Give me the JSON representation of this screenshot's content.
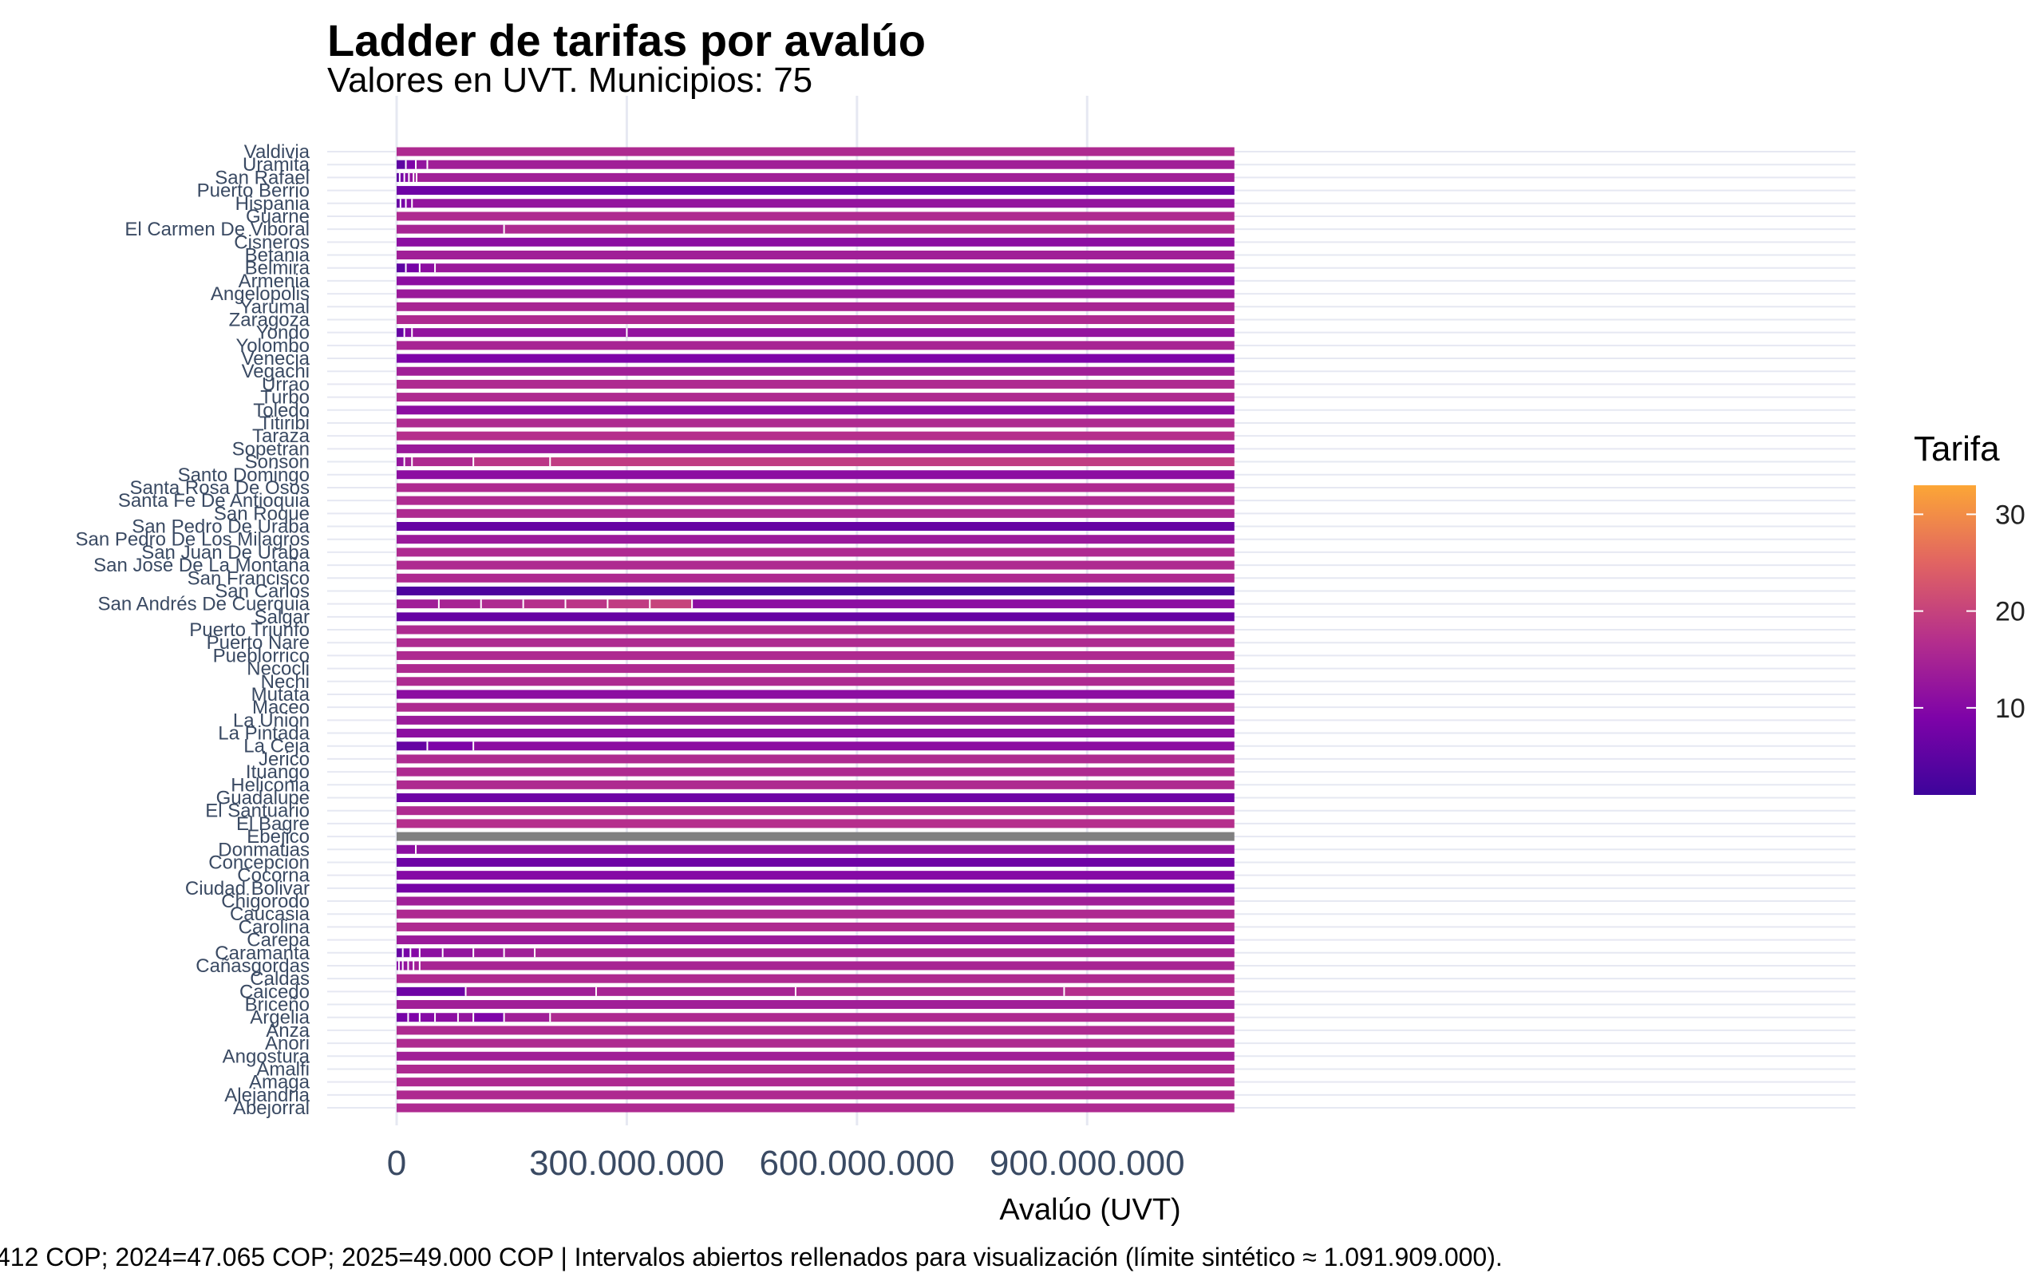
{
  "chart_data": {
    "type": "bar",
    "title": "Ladder de tarifas por avalúo",
    "subtitle": "Valores en UVT. Municipios: 75",
    "xlabel": "Avalúo (UVT)",
    "ylabel": "",
    "xlim": [
      0,
      1091909000
    ],
    "x_ticks": [
      {
        "value": 0,
        "label": "0"
      },
      {
        "value": 300000000,
        "label": "300.000.000"
      },
      {
        "value": 600000000,
        "label": "600.000.000"
      },
      {
        "value": 900000000,
        "label": "900.000.000"
      }
    ],
    "caption": "412 COP; 2024=47.065 COP; 2025=49.000 COP | Intervalos abiertos rellenados para visualización (límite sintético ≈ 1.091.909.000).",
    "legend": {
      "title": "Tarifa",
      "position": "right",
      "ticks": [
        10,
        20,
        30
      ],
      "range": [
        1,
        33
      ]
    },
    "municipios": [
      {
        "name": "Valdivia",
        "breaks": [],
        "tarifas": [
          16
        ]
      },
      {
        "name": "Uramita",
        "breaks": [
          12000000,
          25000000,
          40000000
        ],
        "tarifas": [
          5,
          9,
          12,
          14
        ]
      },
      {
        "name": "San Rafael",
        "breaks": [
          4000000,
          10000000,
          16000000,
          22000000,
          26000000
        ],
        "tarifas": [
          5,
          8,
          10,
          12,
          13,
          14
        ]
      },
      {
        "name": "Puerto Berrio",
        "breaks": [],
        "tarifas": [
          7
        ]
      },
      {
        "name": "Hispania",
        "breaks": [
          5000000,
          12000000,
          20000000
        ],
        "tarifas": [
          6,
          8,
          10,
          12
        ]
      },
      {
        "name": "Guarne",
        "breaks": [],
        "tarifas": [
          16
        ]
      },
      {
        "name": "El Carmen De Viboral",
        "breaks": [
          140000000
        ],
        "tarifas": [
          15,
          16
        ]
      },
      {
        "name": "Cisneros",
        "breaks": [],
        "tarifas": [
          11
        ]
      },
      {
        "name": "Betania",
        "breaks": [],
        "tarifas": [
          14
        ]
      },
      {
        "name": "Belmira",
        "breaks": [
          12000000,
          30000000,
          50000000
        ],
        "tarifas": [
          5,
          8,
          11,
          13
        ]
      },
      {
        "name": "Armenia",
        "breaks": [],
        "tarifas": [
          11
        ]
      },
      {
        "name": "Angelopolis",
        "breaks": [],
        "tarifas": [
          13
        ]
      },
      {
        "name": "Yarumal",
        "breaks": [],
        "tarifas": [
          15
        ]
      },
      {
        "name": "Zaragoza",
        "breaks": [],
        "tarifas": [
          16
        ]
      },
      {
        "name": "Yondo",
        "breaks": [
          10000000,
          20000000,
          300000000
        ],
        "tarifas": [
          6,
          10,
          12,
          12
        ]
      },
      {
        "name": "Yolombo",
        "breaks": [],
        "tarifas": [
          15
        ]
      },
      {
        "name": "Venecia",
        "breaks": [],
        "tarifas": [
          9
        ]
      },
      {
        "name": "Vegachi",
        "breaks": [],
        "tarifas": [
          14
        ]
      },
      {
        "name": "Urrao",
        "breaks": [],
        "tarifas": [
          16
        ]
      },
      {
        "name": "Turbo",
        "breaks": [],
        "tarifas": [
          16
        ]
      },
      {
        "name": "Toledo",
        "breaks": [],
        "tarifas": [
          11
        ]
      },
      {
        "name": "Titiribi",
        "breaks": [],
        "tarifas": [
          16
        ]
      },
      {
        "name": "Taraza",
        "breaks": [],
        "tarifas": [
          17
        ]
      },
      {
        "name": "Sopetran",
        "breaks": [],
        "tarifas": [
          13
        ]
      },
      {
        "name": "Sonson",
        "breaks": [
          10000000,
          20000000,
          100000000,
          200000000
        ],
        "tarifas": [
          12,
          14,
          16,
          18,
          19
        ]
      },
      {
        "name": "Santo Domingo",
        "breaks": [],
        "tarifas": [
          11
        ]
      },
      {
        "name": "Santa Rosa De Osos",
        "breaks": [],
        "tarifas": [
          16
        ]
      },
      {
        "name": "Santa Fe De Antioquia",
        "breaks": [],
        "tarifas": [
          16
        ]
      },
      {
        "name": "San Roque",
        "breaks": [],
        "tarifas": [
          16
        ]
      },
      {
        "name": "San Pedro De Uraba",
        "breaks": [],
        "tarifas": [
          6
        ]
      },
      {
        "name": "San Pedro De Los Milagros",
        "breaks": [],
        "tarifas": [
          13
        ]
      },
      {
        "name": "San Juan De Uraba",
        "breaks": [],
        "tarifas": [
          16
        ]
      },
      {
        "name": "San José De La Montaña",
        "breaks": [],
        "tarifas": [
          16
        ]
      },
      {
        "name": "San Francisco",
        "breaks": [],
        "tarifas": [
          16
        ]
      },
      {
        "name": "San Carlos",
        "breaks": [],
        "tarifas": [
          3
        ]
      },
      {
        "name": "San Andrés De Cuerquia",
        "breaks": [
          55000000,
          110000000,
          165000000,
          220000000,
          275000000,
          330000000,
          385000000
        ],
        "tarifas": [
          14,
          15,
          16,
          17,
          18,
          19,
          20,
          11
        ]
      },
      {
        "name": "Salgar",
        "breaks": [],
        "tarifas": [
          6
        ]
      },
      {
        "name": "Puerto Triunfo",
        "breaks": [],
        "tarifas": [
          16
        ]
      },
      {
        "name": "Puerto Nare",
        "breaks": [],
        "tarifas": [
          16
        ]
      },
      {
        "name": "Pueblorrico",
        "breaks": [],
        "tarifas": [
          16
        ]
      },
      {
        "name": "Necocli",
        "breaks": [],
        "tarifas": [
          16
        ]
      },
      {
        "name": "Nechi",
        "breaks": [],
        "tarifas": [
          16
        ]
      },
      {
        "name": "Mutata",
        "breaks": [],
        "tarifas": [
          11
        ]
      },
      {
        "name": "Maceo",
        "breaks": [],
        "tarifas": [
          16
        ]
      },
      {
        "name": "La Union",
        "breaks": [],
        "tarifas": [
          13
        ]
      },
      {
        "name": "La Pintada",
        "breaks": [],
        "tarifas": [
          11
        ]
      },
      {
        "name": "La Ceja",
        "breaks": [
          40000000,
          100000000
        ],
        "tarifas": [
          6,
          9,
          11
        ]
      },
      {
        "name": "Jerico",
        "breaks": [],
        "tarifas": [
          16
        ]
      },
      {
        "name": "Ituango",
        "breaks": [],
        "tarifas": [
          16
        ]
      },
      {
        "name": "Heliconia",
        "breaks": [],
        "tarifas": [
          16
        ]
      },
      {
        "name": "Guadalupe",
        "breaks": [],
        "tarifas": [
          7
        ]
      },
      {
        "name": "El Santuario",
        "breaks": [],
        "tarifas": [
          16
        ]
      },
      {
        "name": "El Bagre",
        "breaks": [],
        "tarifas": [
          17
        ]
      },
      {
        "name": "Ebejico",
        "breaks": [],
        "tarifas": [
          null
        ]
      },
      {
        "name": "Donmatias",
        "breaks": [
          25000000
        ],
        "tarifas": [
          11,
          12
        ]
      },
      {
        "name": "Concepcion",
        "breaks": [],
        "tarifas": [
          7
        ]
      },
      {
        "name": "Cocorna",
        "breaks": [],
        "tarifas": [
          10
        ]
      },
      {
        "name": "Ciudad Bolivar",
        "breaks": [],
        "tarifas": [
          8
        ]
      },
      {
        "name": "Chigorodo",
        "breaks": [],
        "tarifas": [
          14
        ]
      },
      {
        "name": "Caucasia",
        "breaks": [],
        "tarifas": [
          16
        ]
      },
      {
        "name": "Carolina",
        "breaks": [],
        "tarifas": [
          16
        ]
      },
      {
        "name": "Carepa",
        "breaks": [],
        "tarifas": [
          13
        ]
      },
      {
        "name": "Caramanta",
        "breaks": [
          8000000,
          18000000,
          30000000,
          60000000,
          100000000,
          140000000,
          180000000
        ],
        "tarifas": [
          6,
          8,
          10,
          11,
          12,
          13,
          14,
          15
        ]
      },
      {
        "name": "Cañasgordas",
        "breaks": [
          3000000,
          8000000,
          15000000,
          22000000,
          30000000
        ],
        "tarifas": [
          10,
          11,
          12,
          13,
          14,
          15
        ]
      },
      {
        "name": "Caldas",
        "breaks": [],
        "tarifas": [
          16
        ]
      },
      {
        "name": "Caicedo",
        "breaks": [
          90000000,
          260000000,
          520000000,
          870000000
        ],
        "tarifas": [
          7,
          14,
          15,
          16,
          17
        ]
      },
      {
        "name": "Briceño",
        "breaks": [],
        "tarifas": [
          14
        ]
      },
      {
        "name": "Argelia",
        "breaks": [
          15000000,
          30000000,
          50000000,
          80000000,
          100000000,
          140000000,
          200000000
        ],
        "tarifas": [
          8,
          9,
          10,
          11,
          12,
          9,
          14,
          16
        ]
      },
      {
        "name": "Anza",
        "breaks": [],
        "tarifas": [
          16
        ]
      },
      {
        "name": "Anori",
        "breaks": [],
        "tarifas": [
          16
        ]
      },
      {
        "name": "Angostura",
        "breaks": [],
        "tarifas": [
          14
        ]
      },
      {
        "name": "Amalfi",
        "breaks": [],
        "tarifas": [
          16
        ]
      },
      {
        "name": "Amaga",
        "breaks": [],
        "tarifas": [
          16
        ]
      },
      {
        "name": "Alejandria",
        "breaks": [],
        "tarifas": [
          16
        ]
      },
      {
        "name": "Abejorral",
        "breaks": [],
        "tarifas": [
          16
        ]
      }
    ]
  }
}
